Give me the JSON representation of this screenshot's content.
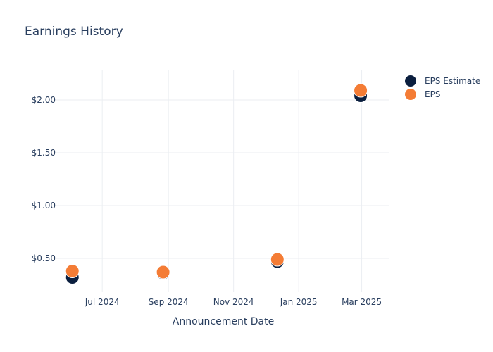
{
  "chart_data": {
    "type": "scatter",
    "title": "Earnings History",
    "xlabel": "Announcement Date",
    "ylabel": "",
    "x_ticks": [
      {
        "date": "2024-07-01",
        "label": "Jul 2024"
      },
      {
        "date": "2024-09-01",
        "label": "Sep 2024"
      },
      {
        "date": "2024-11-01",
        "label": "Nov 2024"
      },
      {
        "date": "2025-01-01",
        "label": "Jan 2025"
      },
      {
        "date": "2025-03-01",
        "label": "Mar 2025"
      }
    ],
    "y_ticks": [
      {
        "value": 0.5,
        "label": "$0.50"
      },
      {
        "value": 1.0,
        "label": "$1.00"
      },
      {
        "value": 1.5,
        "label": "$1.50"
      },
      {
        "value": 2.0,
        "label": "$2.00"
      }
    ],
    "xlim": [
      "2024-05-19",
      "2025-03-27"
    ],
    "ylim": [
      0.18,
      2.28
    ],
    "grid": true,
    "legend_position": "top-right",
    "series": [
      {
        "name": "EPS Estimate",
        "color": "#0b1f3f",
        "points": [
          {
            "x": "2024-06-03",
            "y": 0.32
          },
          {
            "x": "2024-08-27",
            "y": 0.36
          },
          {
            "x": "2024-12-12",
            "y": 0.47
          },
          {
            "x": "2025-02-28",
            "y": 2.04
          }
        ]
      },
      {
        "name": "EPS",
        "color": "#f47c35",
        "points": [
          {
            "x": "2024-06-03",
            "y": 0.38
          },
          {
            "x": "2024-08-27",
            "y": 0.37
          },
          {
            "x": "2024-12-12",
            "y": 0.49
          },
          {
            "x": "2025-02-28",
            "y": 2.09
          }
        ]
      }
    ]
  }
}
